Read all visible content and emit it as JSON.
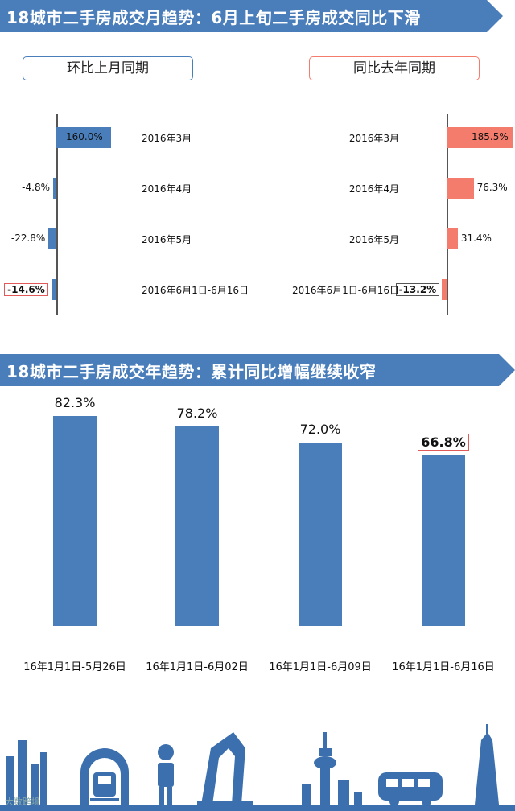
{
  "banner1": {
    "title": "18城市二手房成交月趋势：6月上旬二手房成交同比下滑"
  },
  "banner2": {
    "title": "18城市二手房成交年趋势：累计同比增幅继续收窄"
  },
  "colors": {
    "blue": "#4a7ebb",
    "salmon": "#f47c6c",
    "banner": "#4a7ebb"
  },
  "chart_data": [
    {
      "type": "bar",
      "title": "环比上月同期",
      "categories": [
        "2016年3月",
        "2016年4月",
        "2016年5月",
        "2016年6月1日-6月16日"
      ],
      "values": [
        160.0,
        -4.8,
        -22.8,
        -14.6
      ],
      "labels": [
        "160.0%",
        "-4.8%",
        "-22.8%",
        "-14.6%"
      ],
      "color": "#4a7ebb"
    },
    {
      "type": "bar",
      "title": "同比去年同期",
      "categories": [
        "2016年3月",
        "2016年4月",
        "2016年5月",
        "2016年6月1日-6月16日"
      ],
      "values": [
        185.5,
        76.3,
        31.4,
        -13.2
      ],
      "labels": [
        "185.5%",
        "76.3%",
        "31.4%",
        "-13.2%"
      ],
      "color": "#f47c6c"
    },
    {
      "type": "bar",
      "categories": [
        "16年1月1日-5月26日",
        "16年1月1日-6月02日",
        "16年1月1日-6月09日",
        "16年1月1日-6月16日"
      ],
      "values": [
        82.3,
        78.2,
        72.0,
        66.8
      ],
      "labels": [
        "82.3%",
        "78.2%",
        "72.0%",
        "66.8%"
      ],
      "color": "#4a7ebb"
    }
  ],
  "icons": [
    "city-skyline-icon",
    "train-icon",
    "person-icon",
    "building-icon",
    "tower-icon",
    "bus-icon"
  ],
  "watermark": "大数跨境"
}
